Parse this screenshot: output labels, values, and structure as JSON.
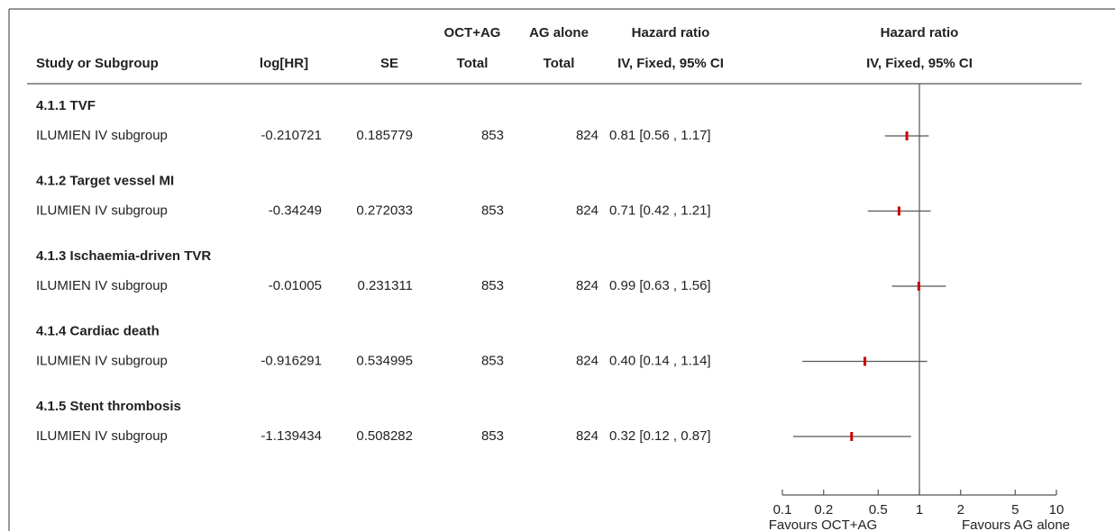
{
  "chart_data": {
    "type": "forest",
    "headers": [
      [
        "Study or Subgroup"
      ],
      [
        "log[HR]"
      ],
      [
        "SE"
      ],
      [
        "OCT+AG",
        "Total"
      ],
      [
        "AG alone",
        "Total"
      ],
      [
        "Hazard ratio",
        "IV, Fixed, 95% CI"
      ]
    ],
    "plot_header": [
      "Hazard ratio",
      "IV, Fixed, 95% CI"
    ],
    "groups": [
      {
        "title": "4.1.1 TVF",
        "study": "ILUMIEN IV subgroup",
        "log_hr": -0.210721,
        "se": 0.185779,
        "oct_total": 853,
        "ag_total": 824,
        "hr": 0.81,
        "ci": [
          0.56,
          1.17
        ],
        "hr_label": "0.81 [0.56 , 1.17]"
      },
      {
        "title": "4.1.2 Target vessel MI",
        "study": "ILUMIEN IV subgroup",
        "log_hr": -0.34249,
        "se": 0.272033,
        "oct_total": 853,
        "ag_total": 824,
        "hr": 0.71,
        "ci": [
          0.42,
          1.21
        ],
        "hr_label": "0.71 [0.42 , 1.21]"
      },
      {
        "title": "4.1.3 Ischaemia-driven TVR",
        "study": "ILUMIEN IV subgroup",
        "log_hr": -0.01005,
        "se": 0.231311,
        "oct_total": 853,
        "ag_total": 824,
        "hr": 0.99,
        "ci": [
          0.63,
          1.56
        ],
        "hr_label": "0.99 [0.63 , 1.56]"
      },
      {
        "title": "4.1.4 Cardiac death",
        "study": "ILUMIEN IV subgroup",
        "log_hr": -0.916291,
        "se": 0.534995,
        "oct_total": 853,
        "ag_total": 824,
        "hr": 0.4,
        "ci": [
          0.14,
          1.14
        ],
        "hr_label": "0.40 [0.14 , 1.14]"
      },
      {
        "title": "4.1.5 Stent thrombosis",
        "study": "ILUMIEN IV subgroup",
        "log_hr": -1.139434,
        "se": 0.508282,
        "oct_total": 853,
        "ag_total": 824,
        "hr": 0.32,
        "ci": [
          0.12,
          0.87
        ],
        "hr_label": "0.32 [0.12 , 0.87]"
      }
    ],
    "marker_color": "#cc0000",
    "ci_color": "#555555",
    "xscale": "log",
    "xlim": [
      0.1,
      10
    ],
    "xticks": [
      0.1,
      0.2,
      0.5,
      1,
      2,
      5,
      10
    ],
    "reference": 1,
    "x_label_left": "Favours OCT+AG",
    "x_label_right": "Favours AG alone"
  }
}
